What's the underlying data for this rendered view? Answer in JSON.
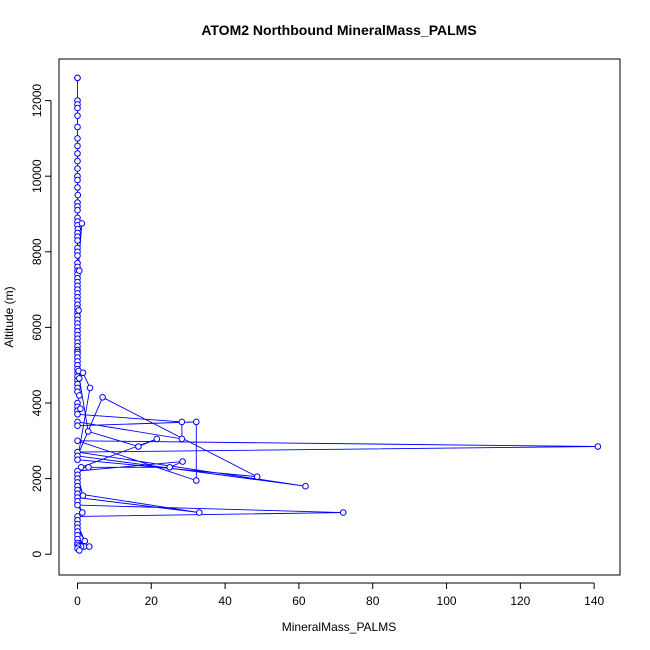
{
  "chart_data": {
    "type": "line",
    "title": "ATOM2 Northbound MineralMass_PALMS",
    "xlabel": "MineralMass_PALMS",
    "ylabel": "Altitude (m)",
    "xlim": [
      -5,
      147
    ],
    "ylim": [
      -550,
      13100
    ],
    "xticks": [
      "0",
      "20",
      "40",
      "60",
      "80",
      "100",
      "120",
      "140"
    ],
    "yticks": [
      "0",
      "2000",
      "4000",
      "6000",
      "8000",
      "10000",
      "12000"
    ],
    "grid": false,
    "legend": "none",
    "series_color": "#0000ff",
    "series": [
      {
        "marker": "open-circle",
        "x": [
          0,
          0,
          0,
          0,
          0,
          0,
          0,
          0,
          0,
          0,
          0,
          0,
          0,
          0,
          0,
          0.1,
          0,
          0,
          0,
          0,
          0,
          0,
          0.1,
          0,
          0,
          0,
          0,
          0,
          0,
          0,
          0,
          0,
          0,
          1.2,
          0,
          0,
          0,
          0,
          0,
          0,
          0,
          0,
          0.5,
          0,
          0,
          0,
          0,
          0,
          0.3,
          0,
          0,
          0,
          0,
          0,
          0,
          0,
          0,
          0,
          0,
          0,
          0,
          0,
          0,
          0.3,
          0,
          0,
          0,
          0,
          0,
          0.5,
          0,
          0,
          0,
          0.8,
          0,
          28.3,
          28.3,
          0,
          0,
          32.2,
          32.2,
          0,
          141,
          0,
          61.8,
          0,
          6.8,
          48.7,
          0,
          3.4,
          1.5,
          0.5,
          2.9,
          16.5,
          21.5,
          1.0,
          3.0,
          25,
          28.5,
          0,
          0,
          1.5,
          0,
          0,
          0,
          0,
          0,
          33,
          0,
          0,
          1.3,
          0,
          72,
          0,
          0,
          0,
          2.0,
          0,
          0,
          0,
          1.8,
          0,
          0,
          0,
          0.5,
          0.2,
          1.0,
          3.2,
          0.2,
          0,
          0.5
        ],
        "y": [
          12600,
          12600,
          12000,
          11900,
          11800,
          11600,
          11300,
          11000,
          10800,
          10600,
          10400,
          10200,
          10000,
          9900,
          9700,
          9500,
          9300,
          9200,
          9100,
          8900,
          8800,
          8700,
          8600,
          8500,
          8400,
          8300,
          8100,
          8000,
          7900,
          7700,
          7600,
          7500,
          7400,
          8750,
          7300,
          7200,
          7100,
          7000,
          6900,
          6800,
          6700,
          6600,
          7500,
          6500,
          6400,
          6300,
          6200,
          6100,
          6450,
          6000,
          5900,
          5800,
          5700,
          5600,
          5500,
          5400,
          5350,
          5300,
          5200,
          5100,
          5000,
          4900,
          4800,
          4850,
          4700,
          4600,
          4500,
          4400,
          4300,
          4200,
          4000,
          3900,
          3800,
          3850,
          3700,
          3500,
          3050,
          3500,
          3400,
          3500,
          1950,
          3000,
          2850,
          2700,
          1800,
          2600,
          4150,
          2050,
          2500,
          4400,
          4800,
          4650,
          3250,
          2850,
          3050,
          2300,
          2300,
          2300,
          2450,
          2200,
          2100,
          1550,
          2000,
          1900,
          1800,
          1700,
          1600,
          1100,
          1500,
          1400,
          1100,
          1300,
          1100,
          1000,
          900,
          800,
          350,
          700,
          600,
          500,
          200,
          400,
          300,
          250,
          200,
          180,
          200,
          200,
          200,
          150,
          100
        ]
      }
    ]
  }
}
